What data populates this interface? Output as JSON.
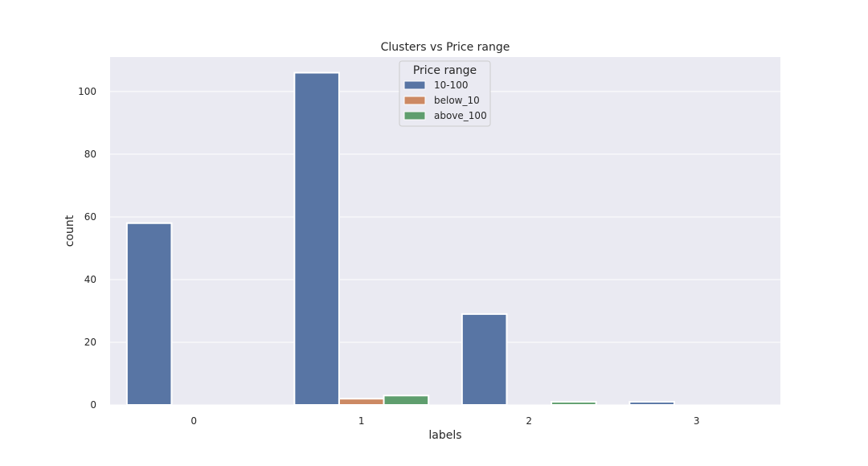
{
  "chart_data": {
    "type": "bar",
    "title": "Clusters vs Price range",
    "xlabel": "labels",
    "ylabel": "count",
    "categories": [
      "0",
      "1",
      "2",
      "3"
    ],
    "ylim": [
      0,
      111
    ],
    "yticks": [
      0,
      20,
      40,
      60,
      80,
      100
    ],
    "grid": true,
    "legend": {
      "title": "Price range",
      "position": "top-center"
    },
    "series": [
      {
        "name": "10-100",
        "color": "#5875a4",
        "values": [
          58,
          106,
          29,
          1
        ]
      },
      {
        "name": "below_10",
        "color": "#cc8963",
        "values": [
          0,
          2,
          0,
          0
        ]
      },
      {
        "name": "above_100",
        "color": "#5f9e6e",
        "values": [
          0,
          3,
          1,
          0
        ]
      }
    ]
  }
}
